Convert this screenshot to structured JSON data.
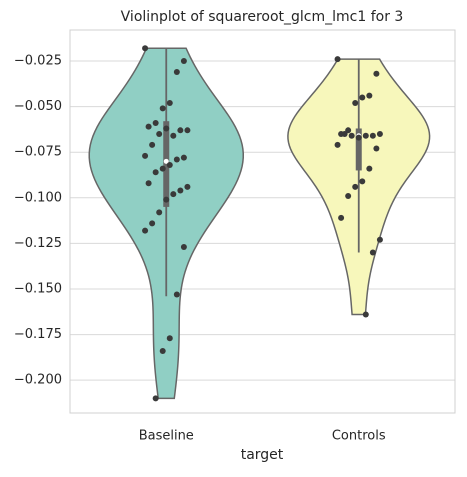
{
  "chart_data": {
    "type": "violin",
    "title": "Violinplot of squareroot_glcm_lmc1 for 3",
    "x_label": "target",
    "categories": [
      "Baseline",
      "Controls"
    ],
    "series": [
      {
        "name": "Baseline",
        "color": "#90cfc4",
        "values": [
          -0.018,
          -0.025,
          -0.031,
          -0.048,
          -0.051,
          -0.059,
          -0.061,
          -0.063,
          -0.063,
          -0.066,
          -0.062,
          -0.065,
          -0.071,
          -0.077,
          -0.078,
          -0.079,
          -0.082,
          -0.084,
          -0.086,
          -0.092,
          -0.094,
          -0.096,
          -0.098,
          -0.101,
          -0.108,
          -0.114,
          -0.118,
          -0.127,
          -0.153,
          -0.177,
          -0.184,
          -0.21
        ],
        "box": {
          "whisker_high": -0.018,
          "q3": -0.058,
          "median": -0.08,
          "q1": -0.105,
          "whisker_low": -0.154
        }
      },
      {
        "name": "Controls",
        "color": "#f7f7bb",
        "values": [
          -0.024,
          -0.032,
          -0.044,
          -0.045,
          -0.048,
          -0.063,
          -0.065,
          -0.065,
          -0.066,
          -0.066,
          -0.067,
          -0.066,
          -0.065,
          -0.071,
          -0.073,
          -0.084,
          -0.091,
          -0.094,
          -0.099,
          -0.111,
          -0.123,
          -0.13,
          -0.164
        ],
        "box": {
          "whisker_high": -0.024,
          "q3": -0.062,
          "median": -0.066,
          "q1": -0.085,
          "whisker_low": -0.13
        }
      }
    ],
    "ylim": [
      -0.218,
      -0.008
    ],
    "yticks": [
      {
        "value": -0.025,
        "label": "−0.025"
      },
      {
        "value": -0.05,
        "label": "−0.050"
      },
      {
        "value": -0.075,
        "label": "−0.075"
      },
      {
        "value": -0.1,
        "label": "−0.100"
      },
      {
        "value": -0.125,
        "label": "−0.125"
      },
      {
        "value": -0.15,
        "label": "−0.150"
      },
      {
        "value": -0.175,
        "label": "−0.175"
      },
      {
        "value": -0.2,
        "label": "−0.200"
      }
    ],
    "grid": true
  }
}
